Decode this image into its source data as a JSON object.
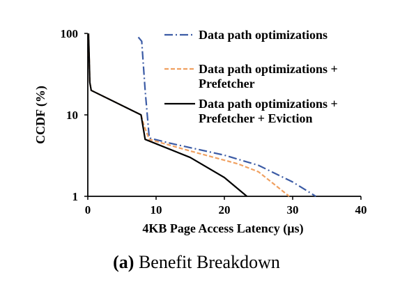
{
  "chart_data": {
    "type": "line",
    "xlabel": "4KB Page Access Latency (µs)",
    "ylabel": "CCDF (%)",
    "xlim": [
      0,
      40
    ],
    "ylim": [
      1,
      100
    ],
    "yscale": "log",
    "x_ticks": [
      "0",
      "10",
      "20",
      "30",
      "40"
    ],
    "y_ticks": [
      "1",
      "10",
      "100"
    ],
    "grid": false,
    "legend_position": "top-right",
    "series": [
      {
        "name": "Data path optimizations",
        "color": "#3b5ba5",
        "dash": "dash-dot",
        "points": [
          [
            7.4,
            90
          ],
          [
            7.9,
            80
          ],
          [
            8.0,
            60
          ],
          [
            8.4,
            20
          ],
          [
            9.0,
            5.2
          ],
          [
            12,
            4.5
          ],
          [
            20,
            3.2
          ],
          [
            25,
            2.4
          ],
          [
            30,
            1.5
          ],
          [
            33.4,
            1.0
          ]
        ]
      },
      {
        "name": "Data path optimizations + Prefetcher",
        "color": "#f0a060",
        "dash": "dashed",
        "points": [
          [
            0.1,
            100
          ],
          [
            0.2,
            50
          ],
          [
            0.3,
            25
          ],
          [
            0.5,
            20
          ],
          [
            7.8,
            10
          ],
          [
            8.2,
            7.5
          ],
          [
            9.0,
            5.0
          ],
          [
            15,
            3.6
          ],
          [
            22,
            2.5
          ],
          [
            25,
            2.0
          ],
          [
            29.5,
            1.0
          ]
        ]
      },
      {
        "name": "Data path optimizations + Prefetcher + Eviction",
        "color": "#000000",
        "dash": "solid",
        "points": [
          [
            0.1,
            100
          ],
          [
            0.2,
            50
          ],
          [
            0.3,
            25
          ],
          [
            0.5,
            20
          ],
          [
            7.8,
            10
          ],
          [
            8.4,
            5.0
          ],
          [
            15,
            3.0
          ],
          [
            20,
            1.7
          ],
          [
            23.3,
            1.0
          ]
        ]
      }
    ]
  },
  "caption": {
    "label": "(a)",
    "text": " Benefit Breakdown"
  }
}
